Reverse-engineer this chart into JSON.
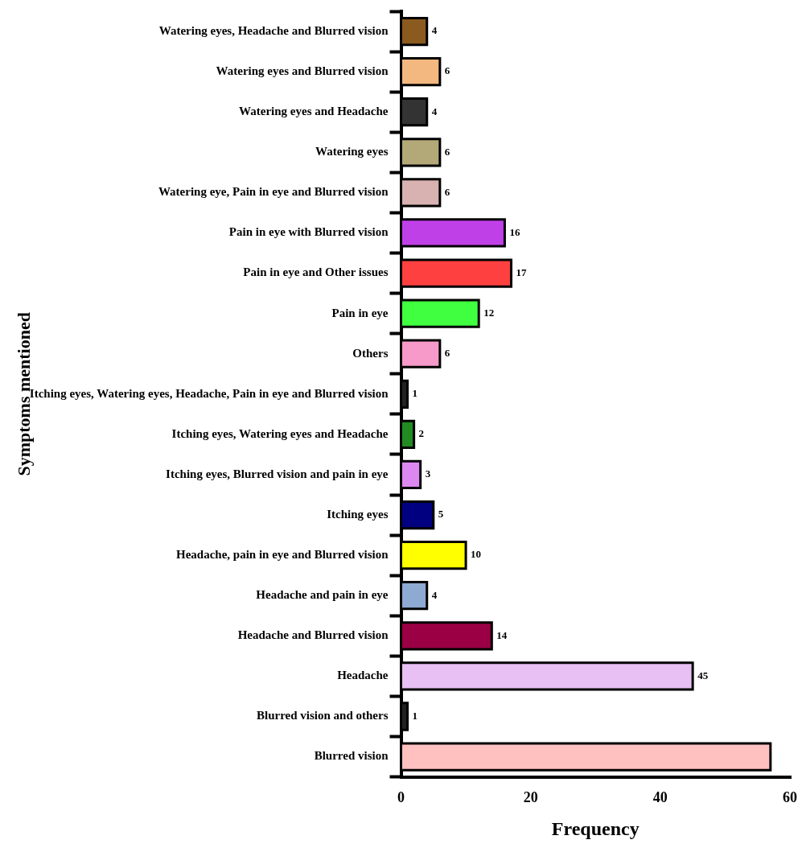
{
  "chart_data": {
    "type": "bar",
    "orientation": "horizontal",
    "xlabel": "Frequency",
    "ylabel": "Symptoms mentioned",
    "categories": [
      "Watering eyes, Headache and Blurred vision",
      "Watering eyes and Blurred vision",
      "Watering eyes and Headache",
      "Watering eyes",
      "Watering eye, Pain in eye and Blurred vision",
      "Pain in eye with Blurred vision",
      "Pain in eye and Other issues",
      "Pain in eye",
      "Others",
      "Itching eyes, Watering eyes, Headache, Pain in eye and Blurred vision",
      "Itching eyes, Watering eyes and Headache",
      "Itching eyes, Blurred vision and pain in eye",
      "Itching eyes",
      "Headache, pain in eye and Blurred vision",
      "Headache and pain in eye",
      "Headache and Blurred vision",
      "Headache",
      "Blurred vision and others",
      "Blurred vision"
    ],
    "values": [
      4,
      6,
      4,
      6,
      6,
      16,
      17,
      12,
      6,
      1,
      2,
      3,
      5,
      10,
      4,
      14,
      45,
      1,
      57
    ],
    "value_labels": [
      "4",
      "6",
      "4",
      "6",
      "6",
      "16",
      "17",
      "12",
      "6",
      "1",
      "2",
      "3",
      "5",
      "10",
      "4",
      "14",
      "45",
      "1",
      null
    ],
    "colors": [
      "#8b5a1e",
      "#f2b880",
      "#333333",
      "#b3a877",
      "#d8b2b0",
      "#c040e8",
      "#ff4040",
      "#40ff40",
      "#f79ac9",
      "#222222",
      "#228b22",
      "#dd88f0",
      "#000080",
      "#ffff00",
      "#8ea9d2",
      "#9b0044",
      "#e8c0f4",
      "#222222",
      "#ffc0c0"
    ],
    "xlim": [
      0,
      60
    ],
    "xticks": [
      0,
      20,
      40,
      60
    ],
    "grid": false,
    "legend": false
  }
}
